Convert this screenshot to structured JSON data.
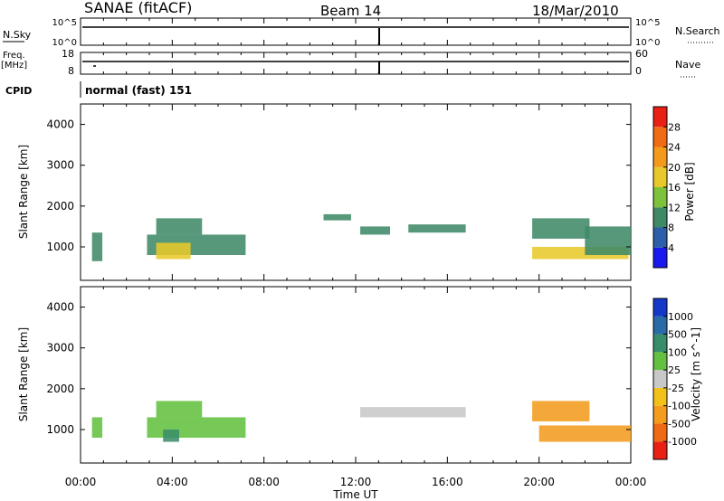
{
  "header": {
    "title": "SANAE (fitACF)",
    "beam": "Beam 14",
    "date": "18/Mar/2010"
  },
  "nsky": {
    "label": "N.Sky",
    "scale_top": "10^5",
    "scale_bottom": "10^0",
    "right_label": "N.Search",
    "right_top": "10^5",
    "right_bottom": "10^0"
  },
  "freq": {
    "label_1": "Freq.",
    "label_2": "[MHz]",
    "tick_top": "18",
    "tick_bottom": "8",
    "right_label": "Nave",
    "right_top": "60",
    "right_bottom": "0"
  },
  "cpid": {
    "label": "CPID",
    "text": "normal (fast) 151"
  },
  "axes": {
    "ylabel": "Slant Range [km]",
    "yticks": [
      1000,
      2000,
      3000,
      4000
    ],
    "xticks": [
      "00:00",
      "04:00",
      "08:00",
      "12:00",
      "16:00",
      "20:00",
      "00:00"
    ],
    "xlabel": "Time UT"
  },
  "power_colorbar": {
    "label": "Power [dB]",
    "ticks": [
      "4",
      "8",
      "12",
      "16",
      "20",
      "24",
      "28"
    ],
    "colors": [
      "#1a1aee",
      "#2d5fa8",
      "#3f8a66",
      "#7ec23b",
      "#e8c82a",
      "#f39a1c",
      "#f16a14",
      "#e82114"
    ]
  },
  "velocity_colorbar": {
    "label": "Velocity [m s^-1]",
    "ticks": [
      "1000",
      "500",
      "100",
      "25",
      "-25",
      "-100",
      "-500",
      "-1000"
    ],
    "colors": [
      "#1438c8",
      "#2a6aa6",
      "#3a8d6a",
      "#63c040",
      "#c8c8c8",
      "#f3c21a",
      "#f39c1e",
      "#ee6a14",
      "#e82114"
    ]
  },
  "chart_data": {
    "type": "heatmap",
    "x_range_hours": [
      0,
      24
    ],
    "y_range_km": [
      180,
      4500
    ],
    "panels": [
      {
        "name": "Power",
        "value_range": [
          0,
          30
        ],
        "regions": [
          {
            "t0": 0.5,
            "t1": 0.95,
            "r0": 650,
            "r1": 1350,
            "value": 8
          },
          {
            "t0": 2.9,
            "t1": 7.2,
            "r0": 800,
            "r1": 1300,
            "value": 8
          },
          {
            "t0": 3.3,
            "t1": 5.3,
            "r0": 1300,
            "r1": 1700,
            "value": 8
          },
          {
            "t0": 3.3,
            "t1": 4.8,
            "r0": 700,
            "r1": 1100,
            "value": 15
          },
          {
            "t0": 10.6,
            "t1": 11.8,
            "r0": 1650,
            "r1": 1800,
            "value": 8
          },
          {
            "t0": 12.2,
            "t1": 13.5,
            "r0": 1300,
            "r1": 1500,
            "value": 8
          },
          {
            "t0": 14.3,
            "t1": 16.8,
            "r0": 1350,
            "r1": 1550,
            "value": 8
          },
          {
            "t0": 19.7,
            "t1": 22.2,
            "r0": 1200,
            "r1": 1700,
            "value": 8
          },
          {
            "t0": 19.7,
            "t1": 23.9,
            "r0": 700,
            "r1": 1000,
            "value": 15
          },
          {
            "t0": 22.0,
            "t1": 24.0,
            "r0": 800,
            "r1": 1500,
            "value": 8
          }
        ]
      },
      {
        "name": "Velocity",
        "value_range": [
          -1000,
          1000
        ],
        "regions": [
          {
            "t0": 0.5,
            "t1": 0.95,
            "r0": 800,
            "r1": 1300,
            "value": 60
          },
          {
            "t0": 2.9,
            "t1": 7.2,
            "r0": 800,
            "r1": 1300,
            "value": 60
          },
          {
            "t0": 3.3,
            "t1": 5.3,
            "r0": 1300,
            "r1": 1700,
            "value": 60
          },
          {
            "t0": 3.6,
            "t1": 4.3,
            "r0": 700,
            "r1": 1000,
            "value": 400
          },
          {
            "t0": 12.2,
            "t1": 16.8,
            "r0": 1300,
            "r1": 1550,
            "value": 0
          },
          {
            "t0": 19.7,
            "t1": 22.2,
            "r0": 1200,
            "r1": 1700,
            "value": -300
          },
          {
            "t0": 20.0,
            "t1": 24.0,
            "r0": 700,
            "r1": 1100,
            "value": -400
          }
        ]
      }
    ]
  }
}
